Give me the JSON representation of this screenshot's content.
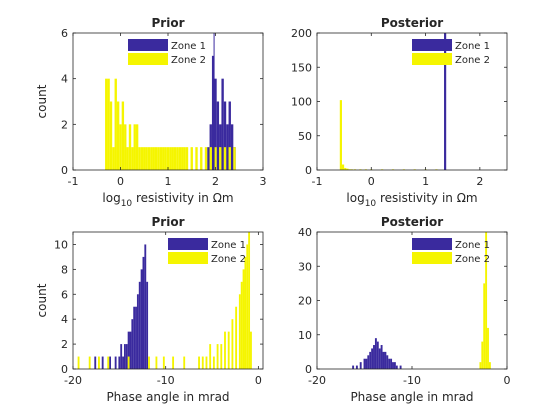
{
  "colors": {
    "zone1": "#3a2a9e",
    "zone2": "#f5f500",
    "axis": "#262626"
  },
  "chart_data": [
    {
      "type": "bar",
      "title": "Prior",
      "xlabel_prefix": "log",
      "xlabel_sub": "10",
      "xlabel_rest": " resistivity in Ωm",
      "ylabel": "count",
      "xlim": [
        -1,
        3
      ],
      "ylim": [
        0,
        6
      ],
      "xticks": [
        "-1",
        "0",
        "1",
        "2",
        "3"
      ],
      "yticks": [
        "0",
        "2",
        "4",
        "6"
      ],
      "xtick_values": [
        -1,
        0,
        1,
        2,
        3
      ],
      "ytick_values": [
        0,
        2,
        4,
        6
      ],
      "legend_position": "top",
      "bin_width": 0.05,
      "series": [
        {
          "name": "Zone 1",
          "color": "#3a2a9e",
          "x": [
            1.85,
            1.9,
            1.95,
            2.0,
            2.05,
            2.1,
            2.15,
            2.2,
            2.25,
            2.3,
            2.35,
            2.4
          ],
          "values": [
            1,
            2,
            5,
            4,
            3,
            2,
            4,
            3,
            2,
            3,
            2,
            1
          ]
        },
        {
          "name": "Zone 2",
          "color": "#f5f500",
          "x": [
            -0.3,
            -0.25,
            -0.2,
            -0.15,
            -0.1,
            -0.05,
            0.0,
            0.05,
            0.1,
            0.15,
            0.2,
            0.25,
            0.3,
            0.35,
            0.4,
            0.45,
            0.5,
            0.55,
            0.6,
            0.65,
            0.7,
            0.75,
            0.8,
            0.85,
            0.9,
            0.95,
            1.0,
            1.05,
            1.1,
            1.15,
            1.2,
            1.25,
            1.3,
            1.35,
            1.4,
            1.5,
            1.6,
            1.7,
            1.8,
            1.9,
            2.0,
            2.1,
            2.2,
            2.3,
            2.4
          ],
          "values": [
            4,
            4,
            3,
            1,
            4,
            3,
            2,
            3,
            2,
            1,
            2,
            1,
            2,
            2,
            1,
            1,
            1,
            1,
            1,
            1,
            1,
            1,
            1,
            1,
            1,
            1,
            1,
            1,
            1,
            1,
            1,
            1,
            1,
            1,
            1,
            1,
            1,
            1,
            1,
            1,
            1,
            1,
            1,
            1,
            1
          ]
        }
      ],
      "vline": {
        "x": 1.97,
        "y_top": 6
      }
    },
    {
      "type": "bar",
      "title": "Posterior",
      "xlabel_prefix": "log",
      "xlabel_sub": "10",
      "xlabel_rest": " resistivity in Ωm",
      "ylabel": "",
      "xlim": [
        -1,
        2.5
      ],
      "ylim": [
        0,
        200
      ],
      "xticks": [
        "-1",
        "0",
        "1",
        "2"
      ],
      "yticks": [
        "0",
        "50",
        "100",
        "150",
        "200"
      ],
      "xtick_values": [
        -1,
        0,
        1,
        2
      ],
      "ytick_values": [
        0,
        50,
        100,
        150,
        200
      ],
      "legend_position": "top-right",
      "bin_width": 0.04,
      "series": [
        {
          "name": "Zone 1",
          "color": "#3a2a9e",
          "x": [
            1.36
          ],
          "values": [
            200
          ]
        },
        {
          "name": "Zone 2",
          "color": "#f5f500",
          "x": [
            -0.56,
            -0.52,
            -0.48,
            -0.44,
            -0.4,
            -0.36,
            -0.3,
            -0.2,
            -0.1,
            0.0,
            0.2,
            0.4,
            0.6,
            0.8,
            1.0,
            1.2
          ],
          "values": [
            102,
            8,
            3,
            2,
            1,
            1,
            1,
            1,
            1,
            1,
            1,
            1,
            1,
            1,
            1,
            1
          ]
        }
      ]
    },
    {
      "type": "bar",
      "title": "Prior",
      "xlabel_prefix": "Phase angle in mrad",
      "xlabel_sub": "",
      "xlabel_rest": "",
      "ylabel": "count",
      "xlim": [
        -20,
        0.5
      ],
      "ylim": [
        0,
        11
      ],
      "xticks": [
        "-20",
        "-10",
        "0"
      ],
      "yticks": [
        "0",
        "2",
        "4",
        "6",
        "8",
        "10"
      ],
      "xtick_values": [
        -20,
        -10,
        0
      ],
      "ytick_values": [
        0,
        2,
        4,
        6,
        8,
        10
      ],
      "legend_position": "top-right",
      "bin_width": 0.2,
      "series": [
        {
          "name": "Zone 1",
          "color": "#3a2a9e",
          "x": [
            -17.6,
            -16.8,
            -16.0,
            -15.4,
            -15.0,
            -14.8,
            -14.6,
            -14.4,
            -14.2,
            -14.0,
            -13.8,
            -13.6,
            -13.4,
            -13.2,
            -13.0,
            -12.8,
            -12.6,
            -12.4,
            -12.2,
            -12.0
          ],
          "values": [
            1,
            1,
            1,
            1,
            1,
            2,
            1,
            2,
            2,
            3,
            3,
            4,
            5,
            5,
            6,
            7,
            8,
            9,
            10,
            7
          ]
        },
        {
          "name": "Zone 2",
          "color": "#f5f500",
          "x": [
            -19.4,
            -18.2,
            -17.2,
            -16.2,
            -14.0,
            -11.8,
            -11.0,
            -10.2,
            -9.2,
            -8.0,
            -6.4,
            -6.0,
            -5.6,
            -5.2,
            -4.8,
            -4.4,
            -4.0,
            -3.6,
            -3.2,
            -2.8,
            -2.4,
            -2.0,
            -1.8,
            -1.6,
            -1.4,
            -1.2,
            -1.0,
            -0.8
          ],
          "values": [
            1,
            1,
            1,
            1,
            1,
            1,
            1,
            1,
            1,
            1,
            1,
            1,
            1,
            2,
            1,
            2,
            2,
            3,
            3,
            4,
            5,
            6,
            7,
            8,
            9,
            10,
            11,
            3
          ]
        }
      ]
    },
    {
      "type": "bar",
      "title": "Posterior",
      "xlabel_prefix": "Phase angle in mrad",
      "xlabel_sub": "",
      "xlabel_rest": "",
      "ylabel": "",
      "xlim": [
        -20,
        0
      ],
      "ylim": [
        0,
        40
      ],
      "xticks": [
        "-20",
        "-10",
        "0"
      ],
      "yticks": [
        "0",
        "10",
        "20",
        "30",
        "40"
      ],
      "xtick_values": [
        -20,
        -10,
        0
      ],
      "ytick_values": [
        0,
        10,
        20,
        30,
        40
      ],
      "legend_position": "top-right",
      "bin_width": 0.2,
      "series": [
        {
          "name": "Zone 1",
          "color": "#3a2a9e",
          "x": [
            -16.2,
            -15.8,
            -15.4,
            -15.0,
            -14.8,
            -14.6,
            -14.4,
            -14.2,
            -14.0,
            -13.8,
            -13.6,
            -13.4,
            -13.2,
            -13.0,
            -12.8,
            -12.6,
            -12.4,
            -12.2,
            -12.0,
            -11.8,
            -11.6,
            -11.2
          ],
          "values": [
            1,
            1,
            2,
            3,
            3,
            4,
            5,
            6,
            7,
            9,
            8,
            6,
            7,
            5,
            5,
            4,
            3,
            3,
            2,
            2,
            1,
            1
          ]
        },
        {
          "name": "Zone 2",
          "color": "#f5f500",
          "x": [
            -2.8,
            -2.6,
            -2.4,
            -2.2,
            -2.0,
            -1.8
          ],
          "values": [
            2,
            8,
            25,
            40,
            12,
            2
          ]
        }
      ]
    }
  ]
}
